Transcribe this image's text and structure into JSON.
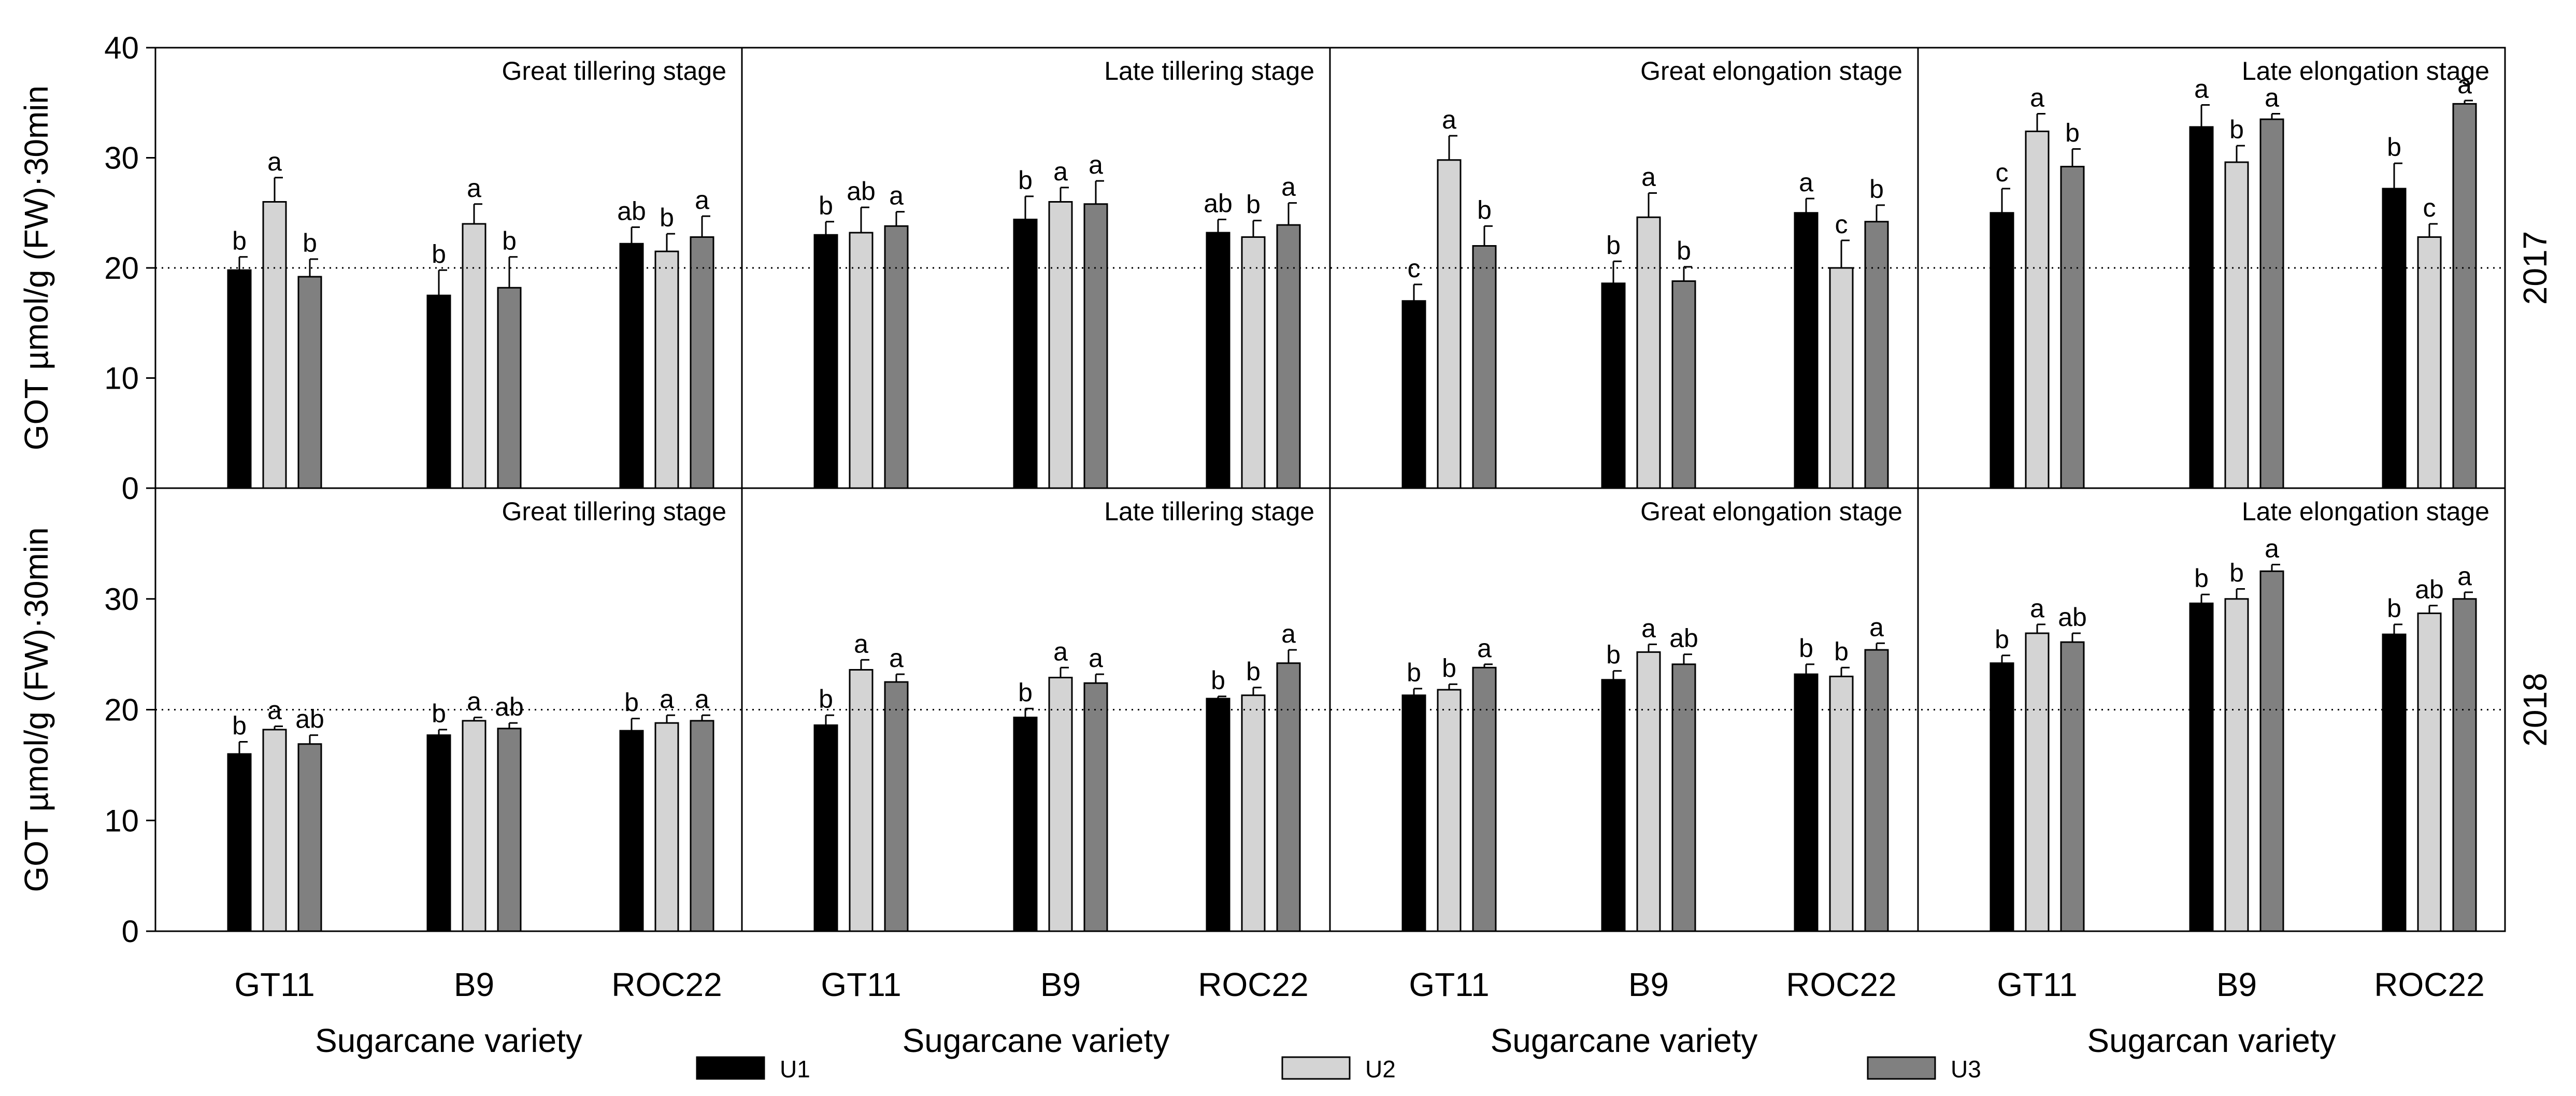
{
  "chart_data": {
    "type": "bar",
    "ylabel": "GOT µmol/g (FW)·30min",
    "ylim": [
      0,
      40
    ],
    "reference_line": 20,
    "series": [
      {
        "name": "U1",
        "color": "#000000"
      },
      {
        "name": "U2",
        "color": "#d4d4d4"
      },
      {
        "name": "U3",
        "color": "#808080"
      }
    ],
    "rows": [
      {
        "year": "2017",
        "yticks": [
          "0",
          "10",
          "20",
          "30",
          "40"
        ],
        "panels": [
          {
            "title": "Great tillering stage",
            "groups": [
              {
                "category": "GT11",
                "values": [
                  19.8,
                  26.0,
                  19.2
                ],
                "errors": [
                  1.2,
                  2.2,
                  1.6
                ],
                "labels": [
                  "b",
                  "a",
                  "b"
                ]
              },
              {
                "category": "B9",
                "values": [
                  17.5,
                  24.0,
                  18.2
                ],
                "errors": [
                  2.3,
                  1.8,
                  2.8
                ],
                "labels": [
                  "b",
                  "a",
                  "b"
                ]
              },
              {
                "category": "ROC22",
                "values": [
                  22.2,
                  21.5,
                  22.8
                ],
                "errors": [
                  1.5,
                  1.6,
                  1.9
                ],
                "labels": [
                  "ab",
                  "b",
                  "a"
                ]
              }
            ]
          },
          {
            "title": "Late tillering stage",
            "groups": [
              {
                "category": "GT11",
                "values": [
                  23.0,
                  23.2,
                  23.8
                ],
                "errors": [
                  1.2,
                  2.3,
                  1.3
                ],
                "labels": [
                  "b",
                  "ab",
                  "a"
                ]
              },
              {
                "category": "B9",
                "values": [
                  24.4,
                  26.0,
                  25.8
                ],
                "errors": [
                  2.1,
                  1.3,
                  2.1
                ],
                "labels": [
                  "b",
                  "a",
                  "a"
                ]
              },
              {
                "category": "ROC22",
                "values": [
                  23.2,
                  22.8,
                  23.9
                ],
                "errors": [
                  1.2,
                  1.5,
                  2.0
                ],
                "labels": [
                  "ab",
                  "b",
                  "a"
                ]
              }
            ]
          },
          {
            "title": "Great elongation stage",
            "groups": [
              {
                "category": "GT11",
                "values": [
                  17.0,
                  29.8,
                  22.0
                ],
                "errors": [
                  1.5,
                  2.2,
                  1.8
                ],
                "labels": [
                  "c",
                  "a",
                  "b"
                ]
              },
              {
                "category": "B9",
                "values": [
                  18.6,
                  24.6,
                  18.8
                ],
                "errors": [
                  2.0,
                  2.2,
                  1.3
                ],
                "labels": [
                  "b",
                  "a",
                  "b"
                ]
              },
              {
                "category": "ROC22",
                "values": [
                  25.0,
                  20.0,
                  24.2
                ],
                "errors": [
                  1.3,
                  2.5,
                  1.5
                ],
                "labels": [
                  "a",
                  "c",
                  "b"
                ]
              }
            ]
          },
          {
            "title": "Late elongation stage",
            "groups": [
              {
                "category": "GT11",
                "values": [
                  25.0,
                  32.4,
                  29.2
                ],
                "errors": [
                  2.2,
                  1.6,
                  1.6
                ],
                "labels": [
                  "c",
                  "a",
                  "b"
                ]
              },
              {
                "category": "B9",
                "values": [
                  32.8,
                  29.6,
                  33.5
                ],
                "errors": [
                  2.0,
                  1.5,
                  0.5
                ],
                "labels": [
                  "a",
                  "b",
                  "a"
                ]
              },
              {
                "category": "ROC22",
                "values": [
                  27.2,
                  22.8,
                  34.9
                ],
                "errors": [
                  2.3,
                  1.2,
                  0.3
                ],
                "labels": [
                  "b",
                  "c",
                  "a"
                ]
              }
            ]
          }
        ]
      },
      {
        "year": "2018",
        "yticks": [
          "0",
          "10",
          "20",
          "30"
        ],
        "panels": [
          {
            "title": "Great tillering stage",
            "groups": [
              {
                "category": "GT11",
                "values": [
                  16.0,
                  18.2,
                  16.9
                ],
                "errors": [
                  1.1,
                  0.3,
                  0.8
                ],
                "labels": [
                  "b",
                  "a",
                  "ab"
                ]
              },
              {
                "category": "B9",
                "values": [
                  17.7,
                  19.0,
                  18.3
                ],
                "errors": [
                  0.5,
                  0.3,
                  0.5
                ],
                "labels": [
                  "b",
                  "a",
                  "ab"
                ]
              },
              {
                "category": "ROC22",
                "values": [
                  18.1,
                  18.8,
                  19.0
                ],
                "errors": [
                  1.1,
                  0.7,
                  0.5
                ],
                "labels": [
                  "b",
                  "a",
                  "a"
                ]
              }
            ]
          },
          {
            "title": "Late tillering stage",
            "groups": [
              {
                "category": "GT11",
                "values": [
                  18.6,
                  23.6,
                  22.5
                ],
                "errors": [
                  0.9,
                  0.9,
                  0.7
                ],
                "labels": [
                  "b",
                  "a",
                  "a"
                ]
              },
              {
                "category": "B9",
                "values": [
                  19.3,
                  22.9,
                  22.4
                ],
                "errors": [
                  0.8,
                  0.9,
                  0.8
                ],
                "labels": [
                  "b",
                  "a",
                  "a"
                ]
              },
              {
                "category": "ROC22",
                "values": [
                  21.0,
                  21.3,
                  24.2
                ],
                "errors": [
                  0.2,
                  0.7,
                  1.2
                ],
                "labels": [
                  "b",
                  "b",
                  "a"
                ]
              }
            ]
          },
          {
            "title": "Great elongation stage",
            "groups": [
              {
                "category": "GT11",
                "values": [
                  21.3,
                  21.8,
                  23.8
                ],
                "errors": [
                  0.6,
                  0.5,
                  0.3
                ],
                "labels": [
                  "b",
                  "b",
                  "a"
                ]
              },
              {
                "category": "B9",
                "values": [
                  22.7,
                  25.2,
                  24.1
                ],
                "errors": [
                  0.8,
                  0.7,
                  0.9
                ],
                "labels": [
                  "b",
                  "a",
                  "ab"
                ]
              },
              {
                "category": "ROC22",
                "values": [
                  23.2,
                  23.0,
                  25.4
                ],
                "errors": [
                  0.9,
                  0.8,
                  0.6
                ],
                "labels": [
                  "b",
                  "b",
                  "a"
                ]
              }
            ]
          },
          {
            "title": "Late elongation stage",
            "groups": [
              {
                "category": "GT11",
                "values": [
                  24.2,
                  26.9,
                  26.1
                ],
                "errors": [
                  0.7,
                  0.8,
                  0.8
                ],
                "labels": [
                  "b",
                  "a",
                  "ab"
                ]
              },
              {
                "category": "B9",
                "values": [
                  29.6,
                  30.0,
                  32.5
                ],
                "errors": [
                  0.8,
                  0.9,
                  0.6
                ],
                "labels": [
                  "b",
                  "b",
                  "a"
                ]
              },
              {
                "category": "ROC22",
                "values": [
                  26.8,
                  28.7,
                  30.0
                ],
                "errors": [
                  0.9,
                  0.7,
                  0.6
                ],
                "labels": [
                  "b",
                  "ab",
                  "a"
                ]
              }
            ]
          }
        ]
      }
    ],
    "xlabels": [
      "Sugarcane  variety",
      "Sugarcane variety",
      "Sugarcane variety",
      "Sugarcan variety"
    ]
  }
}
